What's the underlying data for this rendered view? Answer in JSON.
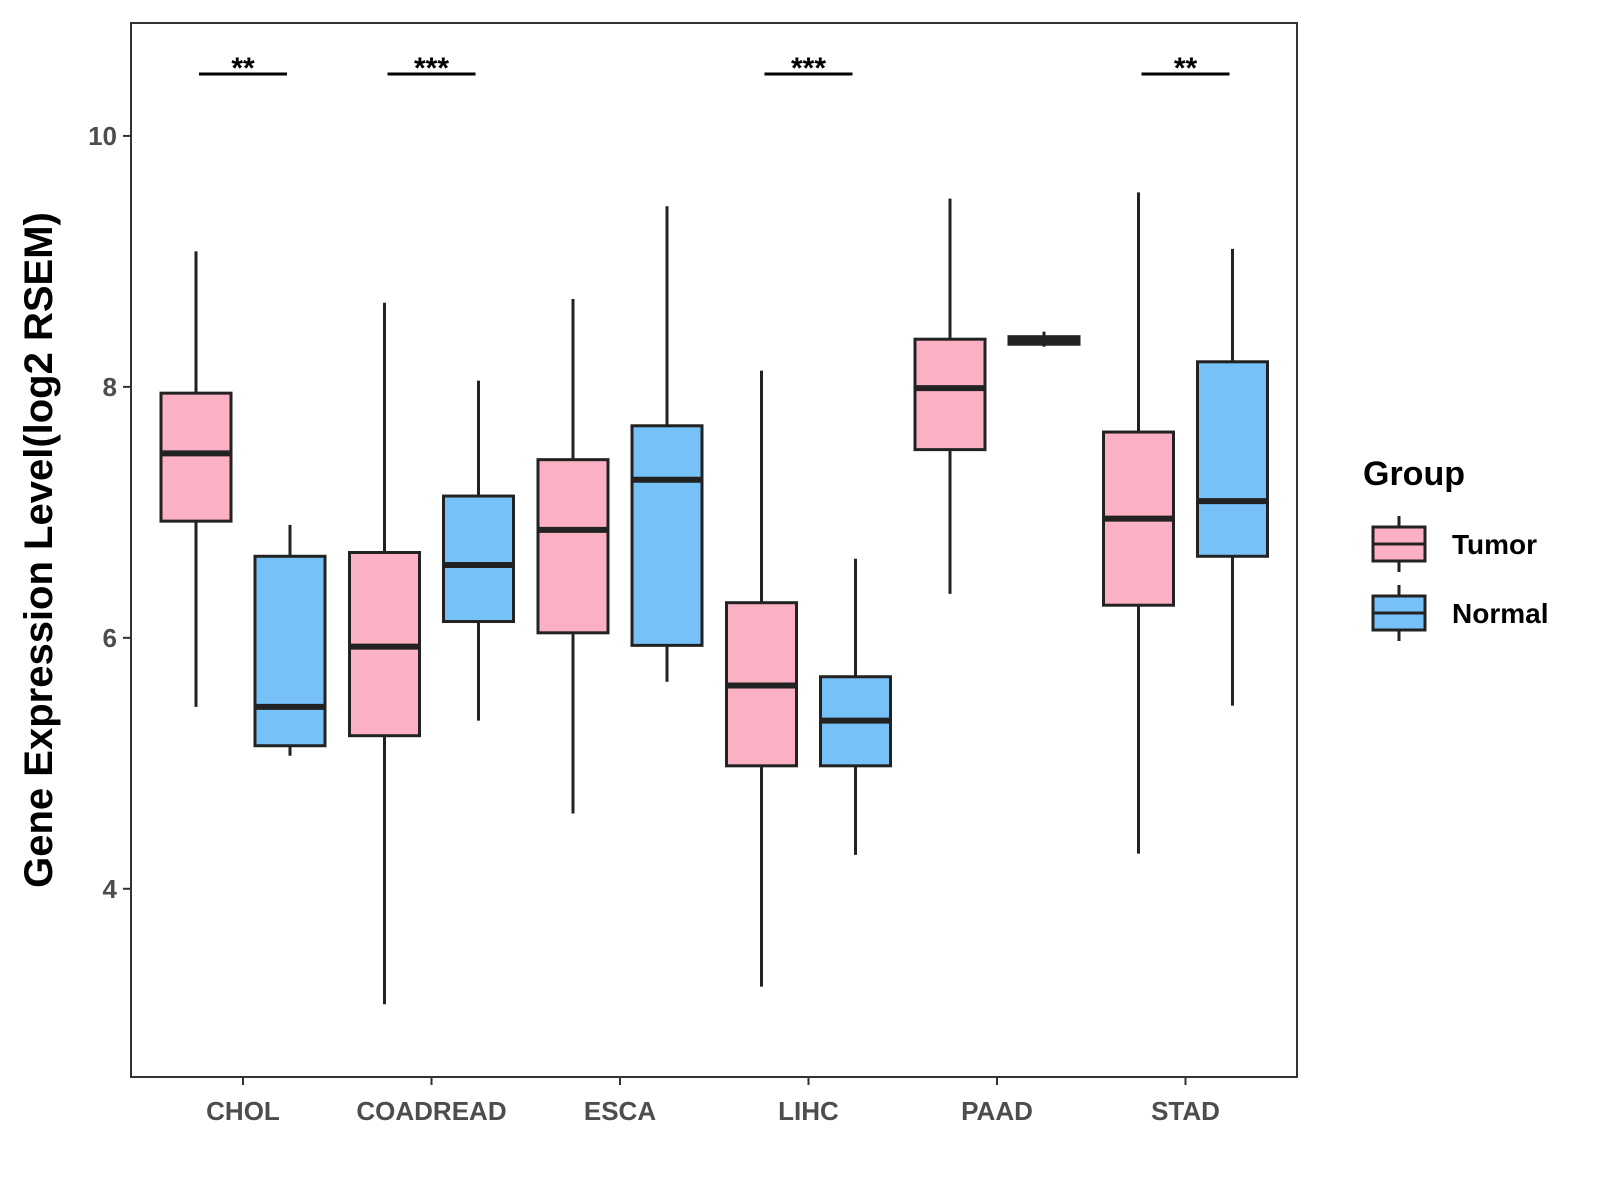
{
  "chart_data": {
    "type": "boxplot",
    "title": "",
    "xlabel": "",
    "ylabel": "Gene Expression Level(log2 RSEM)",
    "ylim": [
      2.5,
      10.9
    ],
    "yticks": [
      4,
      6,
      8,
      10
    ],
    "ytick_labels": [
      "4",
      "6",
      "8",
      "10"
    ],
    "grid": false,
    "categories": [
      "CHOL",
      "COADREAD",
      "ESCA",
      "LIHC",
      "PAAD",
      "STAD"
    ],
    "legend": {
      "title": "Group",
      "position": "right",
      "entries": [
        "Tumor",
        "Normal"
      ]
    },
    "series": [
      {
        "name": "Tumor",
        "color": "#fbb1c3",
        "boxes": [
          {
            "category": "CHOL",
            "min": 5.45,
            "q1": 6.93,
            "median": 7.47,
            "q3": 7.95,
            "max": 9.08
          },
          {
            "category": "COADREAD",
            "min": 3.08,
            "q1": 5.22,
            "median": 5.93,
            "q3": 6.68,
            "max": 8.67
          },
          {
            "category": "ESCA",
            "min": 4.6,
            "q1": 6.04,
            "median": 6.86,
            "q3": 7.42,
            "max": 8.7
          },
          {
            "category": "LIHC",
            "min": 3.22,
            "q1": 4.98,
            "median": 5.62,
            "q3": 6.28,
            "max": 8.13
          },
          {
            "category": "PAAD",
            "min": 6.35,
            "q1": 7.5,
            "median": 7.99,
            "q3": 8.38,
            "max": 9.5
          },
          {
            "category": "STAD",
            "min": 4.28,
            "q1": 6.26,
            "median": 6.95,
            "q3": 7.64,
            "max": 9.55
          }
        ]
      },
      {
        "name": "Normal",
        "color": "#76c1f8",
        "boxes": [
          {
            "category": "CHOL",
            "min": 5.06,
            "q1": 5.14,
            "median": 5.45,
            "q3": 6.65,
            "max": 6.9
          },
          {
            "category": "COADREAD",
            "min": 5.34,
            "q1": 6.13,
            "median": 6.58,
            "q3": 7.13,
            "max": 8.05
          },
          {
            "category": "ESCA",
            "min": 5.65,
            "q1": 5.94,
            "median": 7.26,
            "q3": 7.69,
            "max": 9.44
          },
          {
            "category": "LIHC",
            "min": 4.27,
            "q1": 4.98,
            "median": 5.34,
            "q3": 5.69,
            "max": 6.63
          },
          {
            "category": "PAAD",
            "min": 8.32,
            "q1": 8.34,
            "median": 8.37,
            "q3": 8.4,
            "max": 8.44
          },
          {
            "category": "STAD",
            "min": 5.46,
            "q1": 6.65,
            "median": 7.09,
            "q3": 8.2,
            "max": 9.1
          }
        ]
      }
    ],
    "significance": [
      {
        "category": "CHOL",
        "label": "**"
      },
      {
        "category": "COADREAD",
        "label": "***"
      },
      {
        "category": "LIHC",
        "label": "***"
      },
      {
        "category": "STAD",
        "label": "**"
      }
    ]
  }
}
